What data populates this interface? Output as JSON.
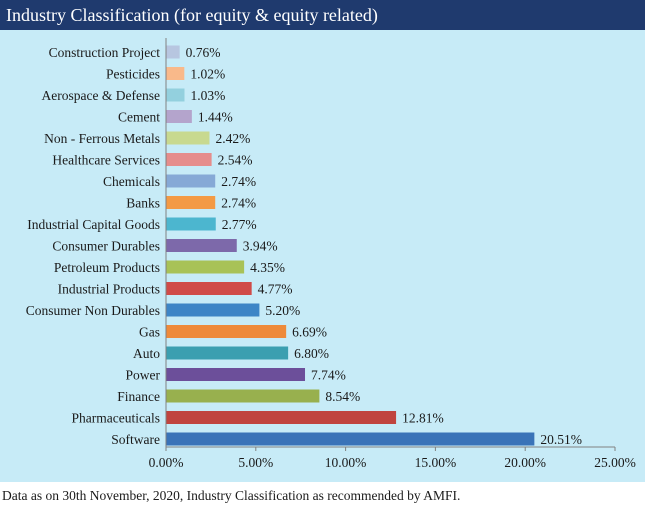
{
  "header": {
    "title": "Industry Classification (for equity & equity related)"
  },
  "footnote": "Data as on 30th November, 2020, Industry Classification as recommended by AMFI.",
  "colors": {
    "header_bg": "#1f3a6e",
    "panel_bg": "#c7ebf7"
  },
  "chart_data": {
    "type": "bar",
    "orientation": "horizontal",
    "title": "Industry Classification (for equity & equity related)",
    "xlabel": "",
    "ylabel": "",
    "xlim": [
      0,
      25
    ],
    "x_ticks": [
      "0.00%",
      "5.00%",
      "10.00%",
      "15.00%",
      "20.00%",
      "25.00%"
    ],
    "x_tick_values": [
      0,
      5,
      10,
      15,
      20,
      25
    ],
    "grid": false,
    "legend": "none",
    "categories": [
      "Construction Project",
      "Pesticides",
      "Aerospace & Defense",
      "Cement",
      "Non - Ferrous Metals",
      "Healthcare Services",
      "Chemicals",
      "Banks",
      "Industrial Capital Goods",
      "Consumer Durables",
      "Petroleum Products",
      "Industrial Products",
      "Consumer Non Durables",
      "Gas",
      "Auto",
      "Power",
      "Finance",
      "Pharmaceuticals",
      "Software"
    ],
    "values": [
      0.76,
      1.02,
      1.03,
      1.44,
      2.42,
      2.54,
      2.74,
      2.74,
      2.77,
      3.94,
      4.35,
      4.77,
      5.2,
      6.69,
      6.8,
      7.74,
      8.54,
      12.81,
      20.51
    ],
    "value_labels": [
      "0.76%",
      "1.02%",
      "1.03%",
      "1.44%",
      "2.42%",
      "2.54%",
      "2.74%",
      "2.74%",
      "2.77%",
      "3.94%",
      "4.35%",
      "4.77%",
      "5.20%",
      "6.69%",
      "6.80%",
      "7.74%",
      "8.54%",
      "12.81%",
      "20.51%"
    ],
    "bar_colors": [
      "#b7c6e0",
      "#f9b98a",
      "#93d0de",
      "#b4a4cc",
      "#c8d98f",
      "#e58d8c",
      "#86a9d6",
      "#f39a45",
      "#4cb6cf",
      "#7d69aa",
      "#a8c257",
      "#d04b48",
      "#3d85c6",
      "#ee8a3a",
      "#3b9fb0",
      "#6c4f9a",
      "#98b04e",
      "#c0443f",
      "#3a73b8"
    ]
  }
}
